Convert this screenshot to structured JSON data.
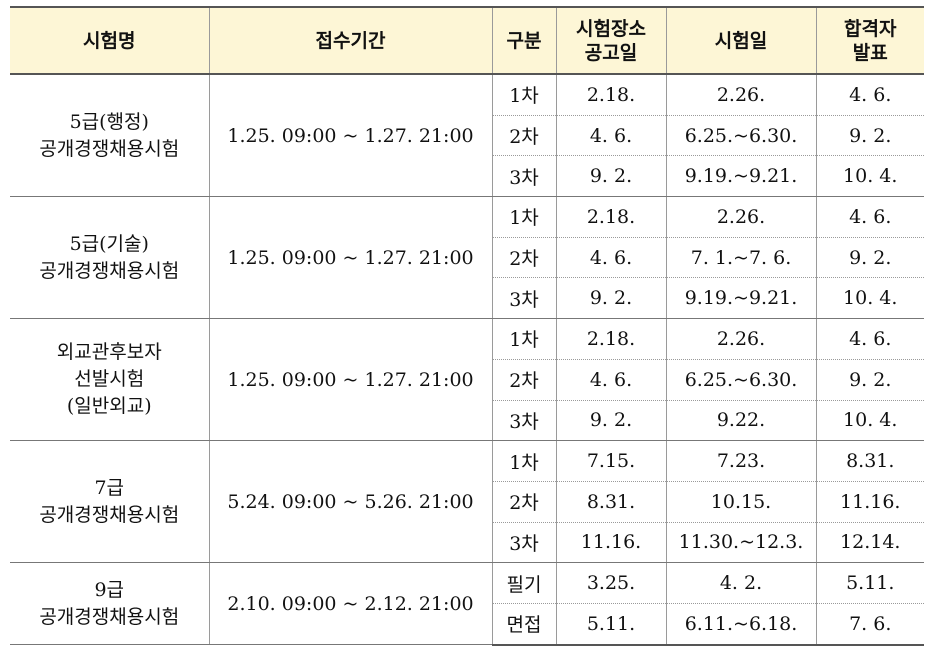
{
  "headers": {
    "exam_name": "시험명",
    "period": "접수기간",
    "type": "구분",
    "venue_notice_1": "시험장소",
    "venue_notice_2": "공고일",
    "exam_date": "시험일",
    "result_1": "합격자",
    "result_2": "발표"
  },
  "exams": [
    {
      "name_lines": [
        "5급(행정)",
        "공개경쟁채용시험"
      ],
      "period": "1.25. 09:00 ~ 1.27. 21:00",
      "stages": [
        {
          "type": "1차",
          "notice": "2.18.",
          "date": "2.26.",
          "result": "4. 6."
        },
        {
          "type": "2차",
          "notice": "4. 6.",
          "date": "6.25.~6.30.",
          "result": "9. 2."
        },
        {
          "type": "3차",
          "notice": "9. 2.",
          "date": "9.19.~9.21.",
          "result": "10. 4."
        }
      ]
    },
    {
      "name_lines": [
        "5급(기술)",
        "공개경쟁채용시험"
      ],
      "period": "1.25. 09:00 ~ 1.27. 21:00",
      "stages": [
        {
          "type": "1차",
          "notice": "2.18.",
          "date": "2.26.",
          "result": "4. 6."
        },
        {
          "type": "2차",
          "notice": "4. 6.",
          "date": "7. 1.~7. 6.",
          "result": "9. 2."
        },
        {
          "type": "3차",
          "notice": "9. 2.",
          "date": "9.19.~9.21.",
          "result": "10. 4."
        }
      ]
    },
    {
      "name_lines": [
        "외교관후보자",
        "선발시험",
        "(일반외교)"
      ],
      "period": "1.25. 09:00 ~ 1.27. 21:00",
      "stages": [
        {
          "type": "1차",
          "notice": "2.18.",
          "date": "2.26.",
          "result": "4. 6."
        },
        {
          "type": "2차",
          "notice": "4. 6.",
          "date": "6.25.~6.30.",
          "result": "9. 2."
        },
        {
          "type": "3차",
          "notice": "9. 2.",
          "date": "9.22.",
          "result": "10. 4."
        }
      ]
    },
    {
      "name_lines": [
        "7급",
        "공개경쟁채용시험"
      ],
      "period": "5.24. 09:00 ~ 5.26. 21:00",
      "stages": [
        {
          "type": "1차",
          "notice": "7.15.",
          "date": "7.23.",
          "result": "8.31."
        },
        {
          "type": "2차",
          "notice": "8.31.",
          "date": "10.15.",
          "result": "11.16."
        },
        {
          "type": "3차",
          "notice": "11.16.",
          "date": "11.30.~12.3.",
          "result": "12.14."
        }
      ]
    },
    {
      "name_lines": [
        "9급",
        "공개경쟁채용시험"
      ],
      "period": "2.10. 09:00 ~ 2.12. 21:00",
      "stages": [
        {
          "type": "필기",
          "notice": "3.25.",
          "date": "4. 2.",
          "result": "5.11."
        },
        {
          "type": "면접",
          "notice": "5.11.",
          "date": "6.11.~6.18.",
          "result": "7. 6."
        }
      ]
    }
  ]
}
